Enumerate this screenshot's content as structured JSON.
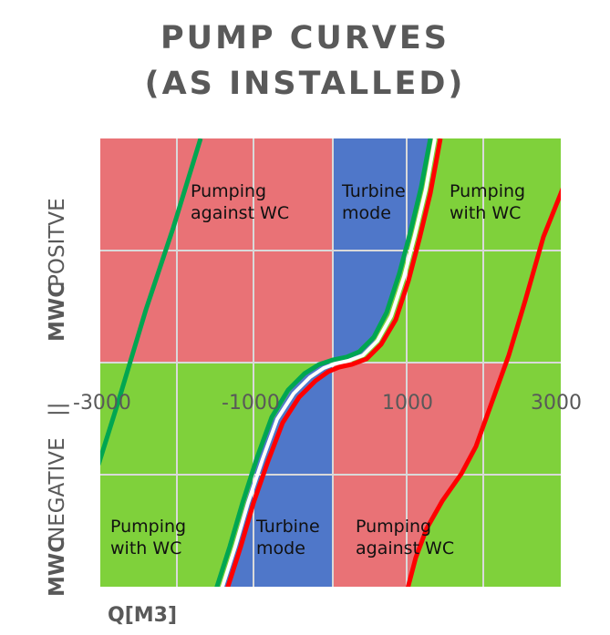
{
  "title_line1": "PUMP CURVES",
  "title_line2": "(AS INSTALLED)",
  "colors": {
    "pink": "#e97276",
    "blue": "#4f77c9",
    "lime": "#7fd13b",
    "green_curve": "#00a651",
    "red_curve": "#ff0000",
    "grid": "#d9d9d9"
  },
  "chart_data": {
    "type": "area",
    "title": "PUMP CURVES (AS INSTALLED)",
    "xlabel": "Q[M3]",
    "ylabel_positive": "POSITVE",
    "ylabel_negative": "NEGATIVE",
    "ylabel_prefix": "MWC",
    "ylabel_separator": "||",
    "xlim": [
      -3000,
      3000
    ],
    "ylim": [
      -1,
      1
    ],
    "x_ticks": [
      "-3000",
      "-1000",
      "1000",
      "3000"
    ],
    "grid": true,
    "regions": [
      {
        "label": "Pumping against WC",
        "color": "pink",
        "quadrant": "upper-left"
      },
      {
        "label": "Turbine mode",
        "color": "blue",
        "quadrant": "upper-center"
      },
      {
        "label": "Pumping with WC",
        "color": "lime",
        "quadrant": "upper-right"
      },
      {
        "label": "Pumping with WC",
        "color": "lime",
        "quadrant": "lower-left"
      },
      {
        "label": "Turbine mode",
        "color": "blue",
        "quadrant": "lower-center"
      },
      {
        "label": "Pumping against WC",
        "color": "pink",
        "quadrant": "lower-right"
      }
    ],
    "series": [
      {
        "color": "green",
        "x": [
          -3000,
          -2200,
          -1300,
          -700,
          -300,
          0,
          300,
          700,
          1200
        ],
        "y": [
          -0.8,
          0.0,
          1.0,
          -0.9,
          -0.2,
          0.0,
          0.2,
          0.8,
          1.0
        ]
      },
      {
        "color": "red",
        "x": [
          -1500,
          -900,
          -400,
          0,
          400,
          900,
          2000,
          3000
        ],
        "y": [
          -1.0,
          -0.5,
          -0.15,
          0.0,
          0.2,
          1.0,
          -0.5,
          0.5
        ]
      }
    ]
  }
}
